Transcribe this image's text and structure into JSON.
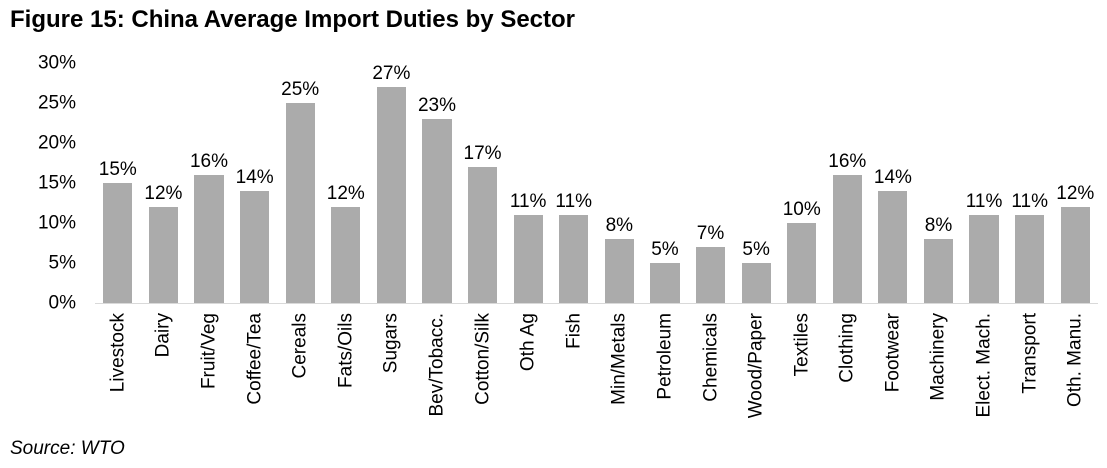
{
  "title": "Figure 15: China Average Import Duties by Sector",
  "source_note": "Source: WTO",
  "colors": {
    "bar": "#ABABAB",
    "axis_line": "#D9D9D9",
    "text": "#000000",
    "background": "#FFFFFF"
  },
  "chart_data": {
    "type": "bar",
    "title": "Figure 15: China Average Import Duties by Sector",
    "categories": [
      "Livestock",
      "Dairy",
      "Fruit/Veg",
      "Coffee/Tea",
      "Cereals",
      "Fats/Oils",
      "Sugars",
      "Bev/Tobacc.",
      "Cotton/Silk",
      "Oth Ag",
      "Fish",
      "Min/Metals",
      "Petroleum",
      "Chemicals",
      "Wood/Paper",
      "Textiles",
      "Clothing",
      "Footwear",
      "Machinery",
      "Elect. Mach.",
      "Transport",
      "Oth. Manu."
    ],
    "values": [
      15,
      12,
      16,
      14,
      25,
      12,
      27,
      23,
      17,
      11,
      11,
      8,
      5,
      7,
      5,
      10,
      16,
      14,
      8,
      11,
      11,
      12
    ],
    "data_labels": [
      "15%",
      "12%",
      "16%",
      "14%",
      "25%",
      "12%",
      "27%",
      "23%",
      "17%",
      "11%",
      "11%",
      "8%",
      "5%",
      "7%",
      "5%",
      "10%",
      "16%",
      "14%",
      "8%",
      "11%",
      "11%",
      "12%"
    ],
    "xlabel": "",
    "ylabel": "",
    "ylim": [
      0,
      30
    ],
    "yticks": [
      0,
      5,
      10,
      15,
      20,
      25,
      30
    ],
    "ytick_labels": [
      "0%",
      "5%",
      "10%",
      "15%",
      "20%",
      "25%",
      "30%"
    ],
    "grid": false,
    "legend": "none",
    "x_label_rotation": 90,
    "source": "Source: WTO"
  }
}
